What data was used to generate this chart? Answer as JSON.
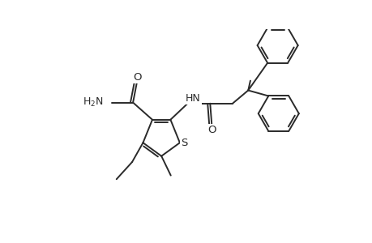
{
  "bg_color": "#ffffff",
  "line_color": "#2a2a2a",
  "lw": 1.4,
  "figsize": [
    4.6,
    3.0
  ],
  "dpi": 100,
  "xlim": [
    0,
    9.2
  ],
  "ylim": [
    0,
    6.0
  ]
}
